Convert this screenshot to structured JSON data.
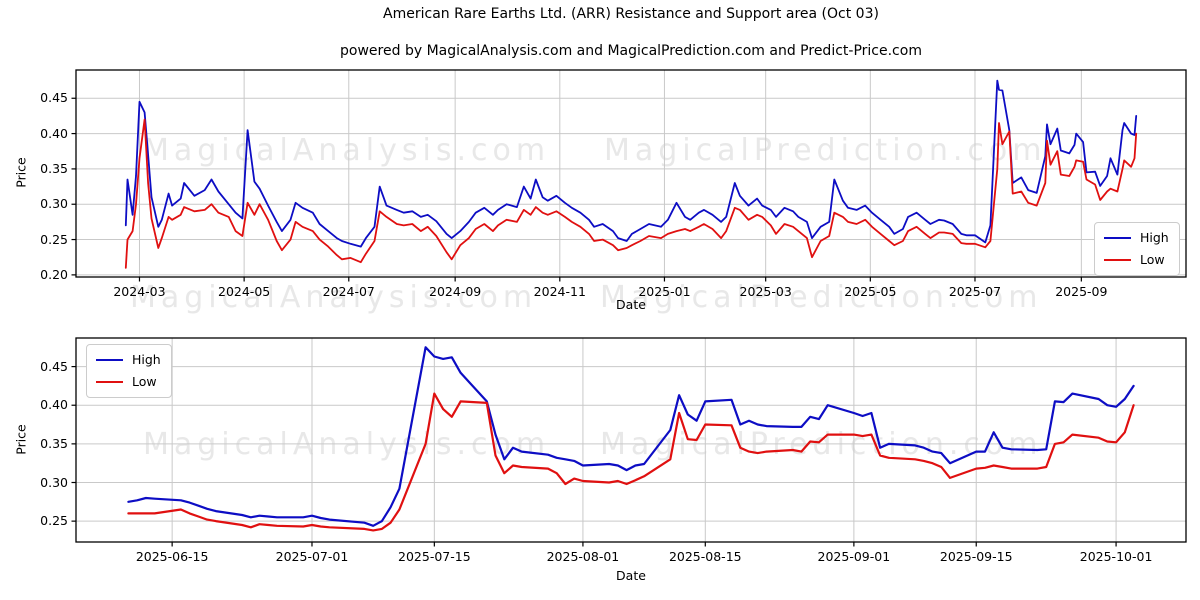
{
  "figure": {
    "title": "American Rare Earths Ltd. (ARR) Resistance and Support area (Oct 03)",
    "subtitle": "powered by MagicalAnalysis.com and MagicalPrediction.com and Predict-Price.com"
  },
  "colors": {
    "high": "#0d0dc4",
    "low": "#e01010",
    "grid": "#c9c9c9",
    "spine": "#000000",
    "tick_text": "#000000",
    "watermark": "#e8e8e8",
    "legend_border": "#cccccc",
    "background": "#ffffff"
  },
  "watermarks": {
    "left": "MagicalAnalysis.com",
    "right": "MagicalPrediction.com"
  },
  "chart_data": [
    {
      "type": "line",
      "name": "full-history",
      "xlabel": "Date",
      "ylabel": "Price",
      "grid": true,
      "legend_position": "center right",
      "x_axis": {
        "start": "2024-01-24",
        "end": "2025-11-01",
        "ticks": [
          {
            "date": "2024-03-01",
            "label": "2024-03"
          },
          {
            "date": "2024-05-01",
            "label": "2024-05"
          },
          {
            "date": "2024-07-01",
            "label": "2024-07"
          },
          {
            "date": "2024-09-01",
            "label": "2024-09"
          },
          {
            "date": "2024-11-01",
            "label": "2024-11"
          },
          {
            "date": "2025-01-01",
            "label": "2025-01"
          },
          {
            "date": "2025-03-01",
            "label": "2025-03"
          },
          {
            "date": "2025-05-01",
            "label": "2025-05"
          },
          {
            "date": "2025-07-01",
            "label": "2025-07"
          },
          {
            "date": "2025-09-01",
            "label": "2025-09"
          }
        ]
      },
      "y_axis": {
        "min": 0.197,
        "max": 0.49,
        "ticks": [
          {
            "value": 0.2,
            "label": "0.20"
          },
          {
            "value": 0.25,
            "label": "0.25"
          },
          {
            "value": 0.3,
            "label": "0.30"
          },
          {
            "value": 0.35,
            "label": "0.35"
          },
          {
            "value": 0.4,
            "label": "0.40"
          },
          {
            "value": 0.45,
            "label": "0.45"
          }
        ]
      },
      "dates": [
        "2024-02-22",
        "2024-02-23",
        "2024-02-26",
        "2024-02-28",
        "2024-03-01",
        "2024-03-04",
        "2024-03-06",
        "2024-03-08",
        "2024-03-12",
        "2024-03-14",
        "2024-03-18",
        "2024-03-20",
        "2024-03-25",
        "2024-03-27",
        "2024-04-02",
        "2024-04-08",
        "2024-04-12",
        "2024-04-16",
        "2024-04-22",
        "2024-04-26",
        "2024-04-30",
        "2024-05-03",
        "2024-05-07",
        "2024-05-10",
        "2024-05-15",
        "2024-05-20",
        "2024-05-23",
        "2024-05-28",
        "2024-05-31",
        "2024-06-04",
        "2024-06-10",
        "2024-06-14",
        "2024-06-19",
        "2024-06-24",
        "2024-06-27",
        "2024-07-02",
        "2024-07-08",
        "2024-07-11",
        "2024-07-16",
        "2024-07-19",
        "2024-07-23",
        "2024-07-29",
        "2024-08-02",
        "2024-08-07",
        "2024-08-12",
        "2024-08-16",
        "2024-08-21",
        "2024-08-27",
        "2024-08-30",
        "2024-09-04",
        "2024-09-09",
        "2024-09-13",
        "2024-09-18",
        "2024-09-23",
        "2024-09-26",
        "2024-10-01",
        "2024-10-07",
        "2024-10-11",
        "2024-10-15",
        "2024-10-18",
        "2024-10-22",
        "2024-10-25",
        "2024-10-30",
        "2024-11-04",
        "2024-11-08",
        "2024-11-13",
        "2024-11-18",
        "2024-11-21",
        "2024-11-26",
        "2024-12-02",
        "2024-12-05",
        "2024-12-10",
        "2024-12-13",
        "2024-12-18",
        "2024-12-23",
        "2024-12-30",
        "2025-01-03",
        "2025-01-08",
        "2025-01-13",
        "2025-01-16",
        "2025-01-21",
        "2025-01-24",
        "2025-01-29",
        "2025-02-03",
        "2025-02-06",
        "2025-02-11",
        "2025-02-14",
        "2025-02-19",
        "2025-02-24",
        "2025-02-27",
        "2025-03-04",
        "2025-03-07",
        "2025-03-12",
        "2025-03-17",
        "2025-03-20",
        "2025-03-25",
        "2025-03-28",
        "2025-04-02",
        "2025-04-07",
        "2025-04-10",
        "2025-04-15",
        "2025-04-18",
        "2025-04-23",
        "2025-04-28",
        "2025-05-02",
        "2025-05-07",
        "2025-05-12",
        "2025-05-15",
        "2025-05-20",
        "2025-05-23",
        "2025-05-28",
        "2025-06-02",
        "2025-06-05",
        "2025-06-10",
        "2025-06-13",
        "2025-06-18",
        "2025-06-23",
        "2025-06-26",
        "2025-07-01",
        "2025-07-07",
        "2025-07-10",
        "2025-07-14",
        "2025-07-15",
        "2025-07-17",
        "2025-07-21",
        "2025-07-23",
        "2025-07-28",
        "2025-08-01",
        "2025-08-06",
        "2025-08-11",
        "2025-08-12",
        "2025-08-14",
        "2025-08-18",
        "2025-08-20",
        "2025-08-25",
        "2025-08-28",
        "2025-08-29",
        "2025-09-02",
        "2025-09-04",
        "2025-09-09",
        "2025-09-12",
        "2025-09-16",
        "2025-09-18",
        "2025-09-22",
        "2025-09-25",
        "2025-09-26",
        "2025-09-30",
        "2025-10-02",
        "2025-10-03"
      ],
      "series": [
        {
          "name": "High",
          "color_key": "high",
          "values": [
            0.27,
            0.335,
            0.285,
            0.34,
            0.445,
            0.43,
            0.37,
            0.31,
            0.268,
            0.278,
            0.315,
            0.298,
            0.308,
            0.33,
            0.312,
            0.32,
            0.335,
            0.318,
            0.3,
            0.288,
            0.28,
            0.405,
            0.332,
            0.322,
            0.298,
            0.275,
            0.262,
            0.278,
            0.302,
            0.295,
            0.288,
            0.272,
            0.262,
            0.252,
            0.248,
            0.244,
            0.24,
            0.252,
            0.268,
            0.325,
            0.298,
            0.292,
            0.288,
            0.29,
            0.282,
            0.285,
            0.276,
            0.258,
            0.252,
            0.262,
            0.275,
            0.288,
            0.295,
            0.285,
            0.292,
            0.3,
            0.296,
            0.325,
            0.308,
            0.335,
            0.31,
            0.305,
            0.312,
            0.302,
            0.295,
            0.288,
            0.278,
            0.268,
            0.272,
            0.262,
            0.252,
            0.248,
            0.258,
            0.265,
            0.272,
            0.268,
            0.278,
            0.302,
            0.282,
            0.278,
            0.288,
            0.292,
            0.285,
            0.275,
            0.282,
            0.33,
            0.312,
            0.298,
            0.308,
            0.298,
            0.292,
            0.282,
            0.295,
            0.29,
            0.282,
            0.275,
            0.252,
            0.268,
            0.275,
            0.335,
            0.305,
            0.295,
            0.292,
            0.298,
            0.288,
            0.278,
            0.268,
            0.258,
            0.265,
            0.282,
            0.288,
            0.278,
            0.272,
            0.278,
            0.277,
            0.272,
            0.258,
            0.256,
            0.256,
            0.246,
            0.27,
            0.475,
            0.462,
            0.461,
            0.405,
            0.33,
            0.338,
            0.32,
            0.316,
            0.368,
            0.413,
            0.385,
            0.407,
            0.376,
            0.372,
            0.384,
            0.4,
            0.388,
            0.345,
            0.346,
            0.326,
            0.34,
            0.365,
            0.342,
            0.405,
            0.415,
            0.4,
            0.398,
            0.425
          ]
        },
        {
          "name": "Low",
          "color_key": "low",
          "values": [
            0.21,
            0.25,
            0.262,
            0.3,
            0.365,
            0.42,
            0.33,
            0.28,
            0.238,
            0.252,
            0.282,
            0.278,
            0.285,
            0.296,
            0.29,
            0.292,
            0.3,
            0.288,
            0.282,
            0.262,
            0.255,
            0.302,
            0.285,
            0.3,
            0.278,
            0.248,
            0.235,
            0.25,
            0.275,
            0.268,
            0.262,
            0.25,
            0.24,
            0.228,
            0.222,
            0.224,
            0.218,
            0.23,
            0.248,
            0.29,
            0.282,
            0.272,
            0.27,
            0.272,
            0.262,
            0.268,
            0.255,
            0.232,
            0.222,
            0.242,
            0.252,
            0.265,
            0.272,
            0.262,
            0.27,
            0.278,
            0.275,
            0.292,
            0.285,
            0.296,
            0.288,
            0.285,
            0.29,
            0.282,
            0.275,
            0.268,
            0.258,
            0.248,
            0.25,
            0.242,
            0.235,
            0.238,
            0.242,
            0.248,
            0.255,
            0.252,
            0.258,
            0.262,
            0.265,
            0.262,
            0.268,
            0.272,
            0.265,
            0.252,
            0.262,
            0.295,
            0.292,
            0.278,
            0.285,
            0.282,
            0.27,
            0.258,
            0.272,
            0.268,
            0.262,
            0.252,
            0.225,
            0.248,
            0.255,
            0.288,
            0.282,
            0.275,
            0.272,
            0.278,
            0.268,
            0.258,
            0.248,
            0.242,
            0.248,
            0.262,
            0.268,
            0.258,
            0.252,
            0.26,
            0.26,
            0.258,
            0.245,
            0.244,
            0.244,
            0.239,
            0.248,
            0.35,
            0.415,
            0.385,
            0.403,
            0.315,
            0.318,
            0.302,
            0.298,
            0.33,
            0.39,
            0.356,
            0.375,
            0.342,
            0.34,
            0.353,
            0.362,
            0.36,
            0.335,
            0.328,
            0.306,
            0.318,
            0.322,
            0.318,
            0.35,
            0.362,
            0.353,
            0.365,
            0.4
          ]
        }
      ]
    },
    {
      "type": "line",
      "name": "recent-detail",
      "xlabel": "Date",
      "ylabel": "Price",
      "grid": true,
      "legend_position": "upper left",
      "x_axis": {
        "start": "2025-06-04",
        "end": "2025-10-09",
        "ticks": [
          {
            "date": "2025-06-15",
            "label": "2025-06-15"
          },
          {
            "date": "2025-07-01",
            "label": "2025-07-01"
          },
          {
            "date": "2025-07-15",
            "label": "2025-07-15"
          },
          {
            "date": "2025-08-01",
            "label": "2025-08-01"
          },
          {
            "date": "2025-08-15",
            "label": "2025-08-15"
          },
          {
            "date": "2025-09-01",
            "label": "2025-09-01"
          },
          {
            "date": "2025-09-15",
            "label": "2025-09-15"
          },
          {
            "date": "2025-10-01",
            "label": "2025-10-01"
          }
        ]
      },
      "y_axis": {
        "min": 0.223,
        "max": 0.487,
        "ticks": [
          {
            "value": 0.25,
            "label": "0.25"
          },
          {
            "value": 0.3,
            "label": "0.30"
          },
          {
            "value": 0.35,
            "label": "0.35"
          },
          {
            "value": 0.4,
            "label": "0.40"
          },
          {
            "value": 0.45,
            "label": "0.45"
          }
        ]
      },
      "dates": [
        "2025-06-10",
        "2025-06-11",
        "2025-06-12",
        "2025-06-13",
        "2025-06-16",
        "2025-06-17",
        "2025-06-18",
        "2025-06-19",
        "2025-06-20",
        "2025-06-23",
        "2025-06-24",
        "2025-06-25",
        "2025-06-26",
        "2025-06-27",
        "2025-06-30",
        "2025-07-01",
        "2025-07-02",
        "2025-07-03",
        "2025-07-07",
        "2025-07-08",
        "2025-07-09",
        "2025-07-10",
        "2025-07-11",
        "2025-07-14",
        "2025-07-15",
        "2025-07-16",
        "2025-07-17",
        "2025-07-18",
        "2025-07-21",
        "2025-07-22",
        "2025-07-23",
        "2025-07-24",
        "2025-07-25",
        "2025-07-28",
        "2025-07-29",
        "2025-07-30",
        "2025-07-31",
        "2025-08-01",
        "2025-08-04",
        "2025-08-05",
        "2025-08-06",
        "2025-08-07",
        "2025-08-08",
        "2025-08-11",
        "2025-08-12",
        "2025-08-13",
        "2025-08-14",
        "2025-08-15",
        "2025-08-18",
        "2025-08-19",
        "2025-08-20",
        "2025-08-21",
        "2025-08-22",
        "2025-08-25",
        "2025-08-26",
        "2025-08-27",
        "2025-08-28",
        "2025-08-29",
        "2025-09-01",
        "2025-09-02",
        "2025-09-03",
        "2025-09-04",
        "2025-09-05",
        "2025-09-08",
        "2025-09-09",
        "2025-09-10",
        "2025-09-11",
        "2025-09-12",
        "2025-09-15",
        "2025-09-16",
        "2025-09-17",
        "2025-09-18",
        "2025-09-19",
        "2025-09-22",
        "2025-09-23",
        "2025-09-24",
        "2025-09-25",
        "2025-09-26",
        "2025-09-29",
        "2025-09-30",
        "2025-10-01",
        "2025-10-02",
        "2025-10-03"
      ],
      "series": [
        {
          "name": "High",
          "color_key": "high",
          "values": [
            0.275,
            0.277,
            0.28,
            0.279,
            0.277,
            0.274,
            0.27,
            0.266,
            0.263,
            0.258,
            0.255,
            0.257,
            0.256,
            0.255,
            0.255,
            0.257,
            0.254,
            0.252,
            0.248,
            0.244,
            0.25,
            0.268,
            0.292,
            0.475,
            0.463,
            0.46,
            0.462,
            0.442,
            0.405,
            0.362,
            0.33,
            0.345,
            0.34,
            0.336,
            0.332,
            0.33,
            0.328,
            0.322,
            0.324,
            0.322,
            0.316,
            0.322,
            0.324,
            0.368,
            0.413,
            0.388,
            0.38,
            0.405,
            0.407,
            0.375,
            0.38,
            0.375,
            0.373,
            0.372,
            0.372,
            0.385,
            0.382,
            0.4,
            0.39,
            0.386,
            0.39,
            0.345,
            0.35,
            0.348,
            0.345,
            0.34,
            0.338,
            0.325,
            0.34,
            0.34,
            0.365,
            0.345,
            0.343,
            0.342,
            0.343,
            0.405,
            0.404,
            0.415,
            0.408,
            0.4,
            0.398,
            0.408,
            0.425
          ]
        },
        {
          "name": "Low",
          "color_key": "low",
          "values": [
            0.26,
            0.26,
            0.26,
            0.26,
            0.265,
            0.26,
            0.256,
            0.252,
            0.25,
            0.245,
            0.242,
            0.246,
            0.245,
            0.244,
            0.243,
            0.245,
            0.243,
            0.242,
            0.24,
            0.238,
            0.24,
            0.248,
            0.265,
            0.35,
            0.415,
            0.395,
            0.385,
            0.405,
            0.403,
            0.335,
            0.312,
            0.322,
            0.32,
            0.318,
            0.312,
            0.298,
            0.305,
            0.302,
            0.3,
            0.302,
            0.298,
            0.303,
            0.308,
            0.33,
            0.39,
            0.356,
            0.355,
            0.375,
            0.374,
            0.345,
            0.34,
            0.338,
            0.34,
            0.342,
            0.34,
            0.353,
            0.352,
            0.362,
            0.362,
            0.36,
            0.362,
            0.335,
            0.332,
            0.33,
            0.328,
            0.325,
            0.32,
            0.306,
            0.318,
            0.319,
            0.322,
            0.32,
            0.318,
            0.318,
            0.32,
            0.35,
            0.352,
            0.362,
            0.358,
            0.353,
            0.352,
            0.365,
            0.4
          ]
        }
      ]
    }
  ],
  "legend": {
    "high_label": "High",
    "low_label": "Low"
  }
}
